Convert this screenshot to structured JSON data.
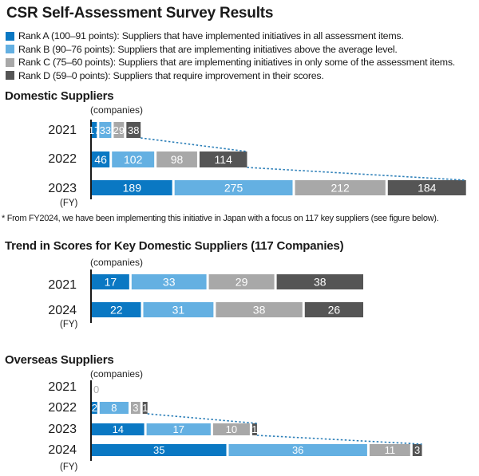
{
  "title": "CSR Self-Assessment Survey Results",
  "colors": {
    "rank_a": "#0a78c3",
    "rank_b": "#64b0e2",
    "rank_c": "#a8a8a8",
    "rank_d": "#555555",
    "connector": "#2c7fb8"
  },
  "legend": [
    {
      "key": "rank_a",
      "label": "Rank A (100–91 points): Suppliers that have implemented initiatives in all assessment items."
    },
    {
      "key": "rank_b",
      "label": "Rank B (90–76 points): Suppliers that are implementing initiatives above the average level."
    },
    {
      "key": "rank_c",
      "label": "Rank C (75–60 points): Suppliers that are implementing initiatives in only some of the assessment items."
    },
    {
      "key": "rank_d",
      "label": "Rank D (59–0 points): Suppliers that require improvement in their scores."
    }
  ],
  "unit_label": "(companies)",
  "fy_label": "(FY)",
  "footnote": "* From FY2024, we have been implementing this initiative in Japan with a focus on 117 key suppliers (see figure below).",
  "chart_data": [
    {
      "type": "bar",
      "stacked": true,
      "orientation": "horizontal",
      "title": "Domestic Suppliers",
      "xlabel": "(companies)",
      "ylabel": "(FY)",
      "categories": [
        "2021",
        "2022",
        "2023"
      ],
      "series": [
        {
          "name": "Rank A",
          "values": [
            17,
            46,
            189
          ]
        },
        {
          "name": "Rank B",
          "values": [
            33,
            102,
            275
          ]
        },
        {
          "name": "Rank C",
          "values": [
            29,
            98,
            212
          ]
        },
        {
          "name": "Rank D",
          "values": [
            38,
            114,
            184
          ]
        }
      ],
      "connector_lines": "dotted lines linking end of each bar to the next year's bar end"
    },
    {
      "type": "bar",
      "stacked": true,
      "orientation": "horizontal",
      "title": "Trend in Scores for Key Domestic Suppliers (117 Companies)",
      "xlabel": "(companies)",
      "ylabel": "(FY)",
      "categories": [
        "2021",
        "2024"
      ],
      "series": [
        {
          "name": "Rank A",
          "values": [
            17,
            22
          ]
        },
        {
          "name": "Rank B",
          "values": [
            33,
            31
          ]
        },
        {
          "name": "Rank C",
          "values": [
            29,
            38
          ]
        },
        {
          "name": "Rank D",
          "values": [
            38,
            26
          ]
        }
      ],
      "normalized": "each bar spans full width (100%)"
    },
    {
      "type": "bar",
      "stacked": true,
      "orientation": "horizontal",
      "title": "Overseas Suppliers",
      "xlabel": "(companies)",
      "ylabel": "(FY)",
      "categories": [
        "2021",
        "2022",
        "2023",
        "2024"
      ],
      "series": [
        {
          "name": "Rank A",
          "values": [
            0,
            2,
            14,
            35
          ]
        },
        {
          "name": "Rank B",
          "values": [
            0,
            8,
            17,
            36
          ]
        },
        {
          "name": "Rank C",
          "values": [
            0,
            3,
            10,
            11
          ]
        },
        {
          "name": "Rank D",
          "values": [
            0,
            1,
            1,
            3
          ]
        }
      ],
      "annotations": [
        {
          "category": "2021",
          "text": "0"
        }
      ],
      "connector_lines": "dotted lines linking end of each bar to the next year's bar end"
    }
  ]
}
